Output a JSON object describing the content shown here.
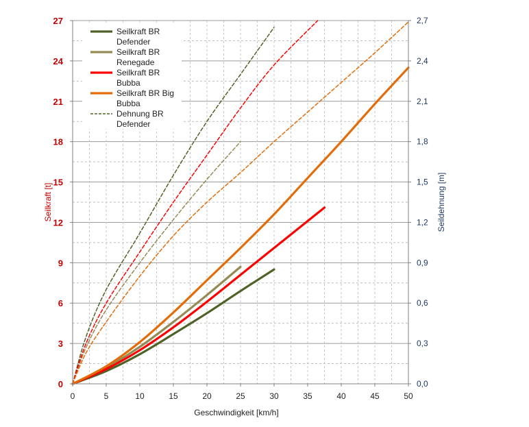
{
  "chart_data": {
    "type": "line",
    "xlabel": "Geschwindigkeit  [km/h]",
    "ylabel_left": "Seilkraft  [t]",
    "ylabel_right": "Seildehnung [m]",
    "xlim": [
      0,
      50
    ],
    "ylim_left": [
      0,
      27
    ],
    "ylim_right": [
      0,
      2.7
    ],
    "x_ticks": [
      "0",
      "5",
      "10",
      "15",
      "20",
      "25",
      "30",
      "35",
      "40",
      "45",
      "50"
    ],
    "y_left_ticks": [
      "0",
      "3",
      "6",
      "9",
      "12",
      "15",
      "18",
      "21",
      "24",
      "27"
    ],
    "y_right_ticks": [
      "0,0",
      "0,3",
      "0,6",
      "0,9",
      "1,2",
      "1,5",
      "1,8",
      "2,1",
      "2,4",
      "2,7"
    ],
    "grid": true,
    "legend_position": "top-left",
    "colors": {
      "left_axis": "#c00000",
      "right_axis": "#1f3864",
      "defender": "#4f6228",
      "renegade": "#948a54",
      "bubba": "#ff0000",
      "big_bubba": "#e36c09"
    },
    "series": [
      {
        "name": "Seilkraft BR Defender",
        "axis": "left",
        "style": "solid",
        "color": "#4f6228",
        "x": [
          0,
          5,
          10,
          15,
          20,
          25,
          30
        ],
        "y": [
          0,
          0.95,
          2.2,
          3.7,
          5.25,
          6.9,
          8.5
        ]
      },
      {
        "name": "Seilkraft BR Renegade",
        "axis": "left",
        "style": "solid",
        "color": "#948a54",
        "x": [
          0,
          5,
          10,
          15,
          20,
          25
        ],
        "y": [
          0,
          1.2,
          2.75,
          4.6,
          6.6,
          8.7
        ]
      },
      {
        "name": "Seilkraft BR Bubba",
        "axis": "left",
        "style": "solid",
        "color": "#ff0000",
        "x": [
          0,
          5,
          10,
          15,
          20,
          25,
          30,
          37.5
        ],
        "y": [
          0,
          1.1,
          2.5,
          4.2,
          6.1,
          8.1,
          10.1,
          13.1
        ]
      },
      {
        "name": "Seilkraft BR Big Bubba",
        "axis": "left",
        "style": "solid",
        "color": "#e36c09",
        "x": [
          0,
          5,
          10,
          15,
          20,
          25,
          30,
          35,
          40,
          45,
          50
        ],
        "y": [
          0,
          1.3,
          3.1,
          5.3,
          7.7,
          10.1,
          12.6,
          15.3,
          18.0,
          20.8,
          23.5
        ]
      },
      {
        "name": "Dehnung BR Defender",
        "axis": "right",
        "style": "dashed",
        "color": "#4f6228",
        "x": [
          0,
          2,
          5,
          10,
          15,
          20,
          25,
          30
        ],
        "y": [
          0,
          0.35,
          0.7,
          1.12,
          1.55,
          1.95,
          2.3,
          2.65
        ]
      },
      {
        "name": "",
        "axis": "right",
        "style": "dashed",
        "color": "#948a54",
        "x": [
          0,
          2,
          5,
          10,
          15,
          20,
          25
        ],
        "y": [
          0,
          0.27,
          0.55,
          0.9,
          1.22,
          1.52,
          1.8
        ]
      },
      {
        "name": "",
        "axis": "right",
        "style": "dashed",
        "color": "#ff0000",
        "x": [
          0,
          2,
          5,
          10,
          15,
          20,
          25,
          30,
          36.5
        ],
        "y": [
          0,
          0.3,
          0.6,
          0.98,
          1.35,
          1.7,
          2.05,
          2.37,
          2.7
        ]
      },
      {
        "name": "",
        "axis": "right",
        "style": "dashed",
        "color": "#e36c09",
        "x": [
          0,
          2,
          5,
          10,
          15,
          20,
          25,
          30,
          35,
          40,
          45,
          50
        ],
        "y": [
          0,
          0.23,
          0.46,
          0.8,
          1.1,
          1.35,
          1.57,
          1.8,
          2.02,
          2.24,
          2.46,
          2.69
        ]
      }
    ]
  }
}
